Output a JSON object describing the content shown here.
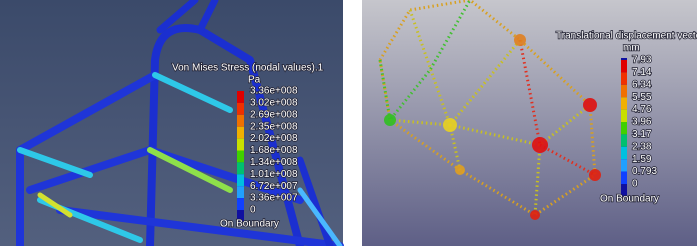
{
  "panels": [
    {
      "title": "Von Mises Stress (nodal values).1",
      "unit": "Pa",
      "labels": [
        "3.36e+008",
        "3.02e+008",
        "2.69e+008",
        "2.35e+008",
        "2.02e+008",
        "1.68e+008",
        "1.34e+008",
        "1.01e+008",
        "6.72e+007",
        "3.36e+007",
        "0"
      ],
      "footer": "On Boundary"
    },
    {
      "title": "Translational displacement vector.",
      "unit": "mm",
      "labels": [
        "7.93",
        "7.14",
        "6.34",
        "5.55",
        "4.76",
        "3.96",
        "3.17",
        "2.38",
        "1.59",
        "0.793",
        "0"
      ],
      "footer": "On Boundary"
    }
  ]
}
